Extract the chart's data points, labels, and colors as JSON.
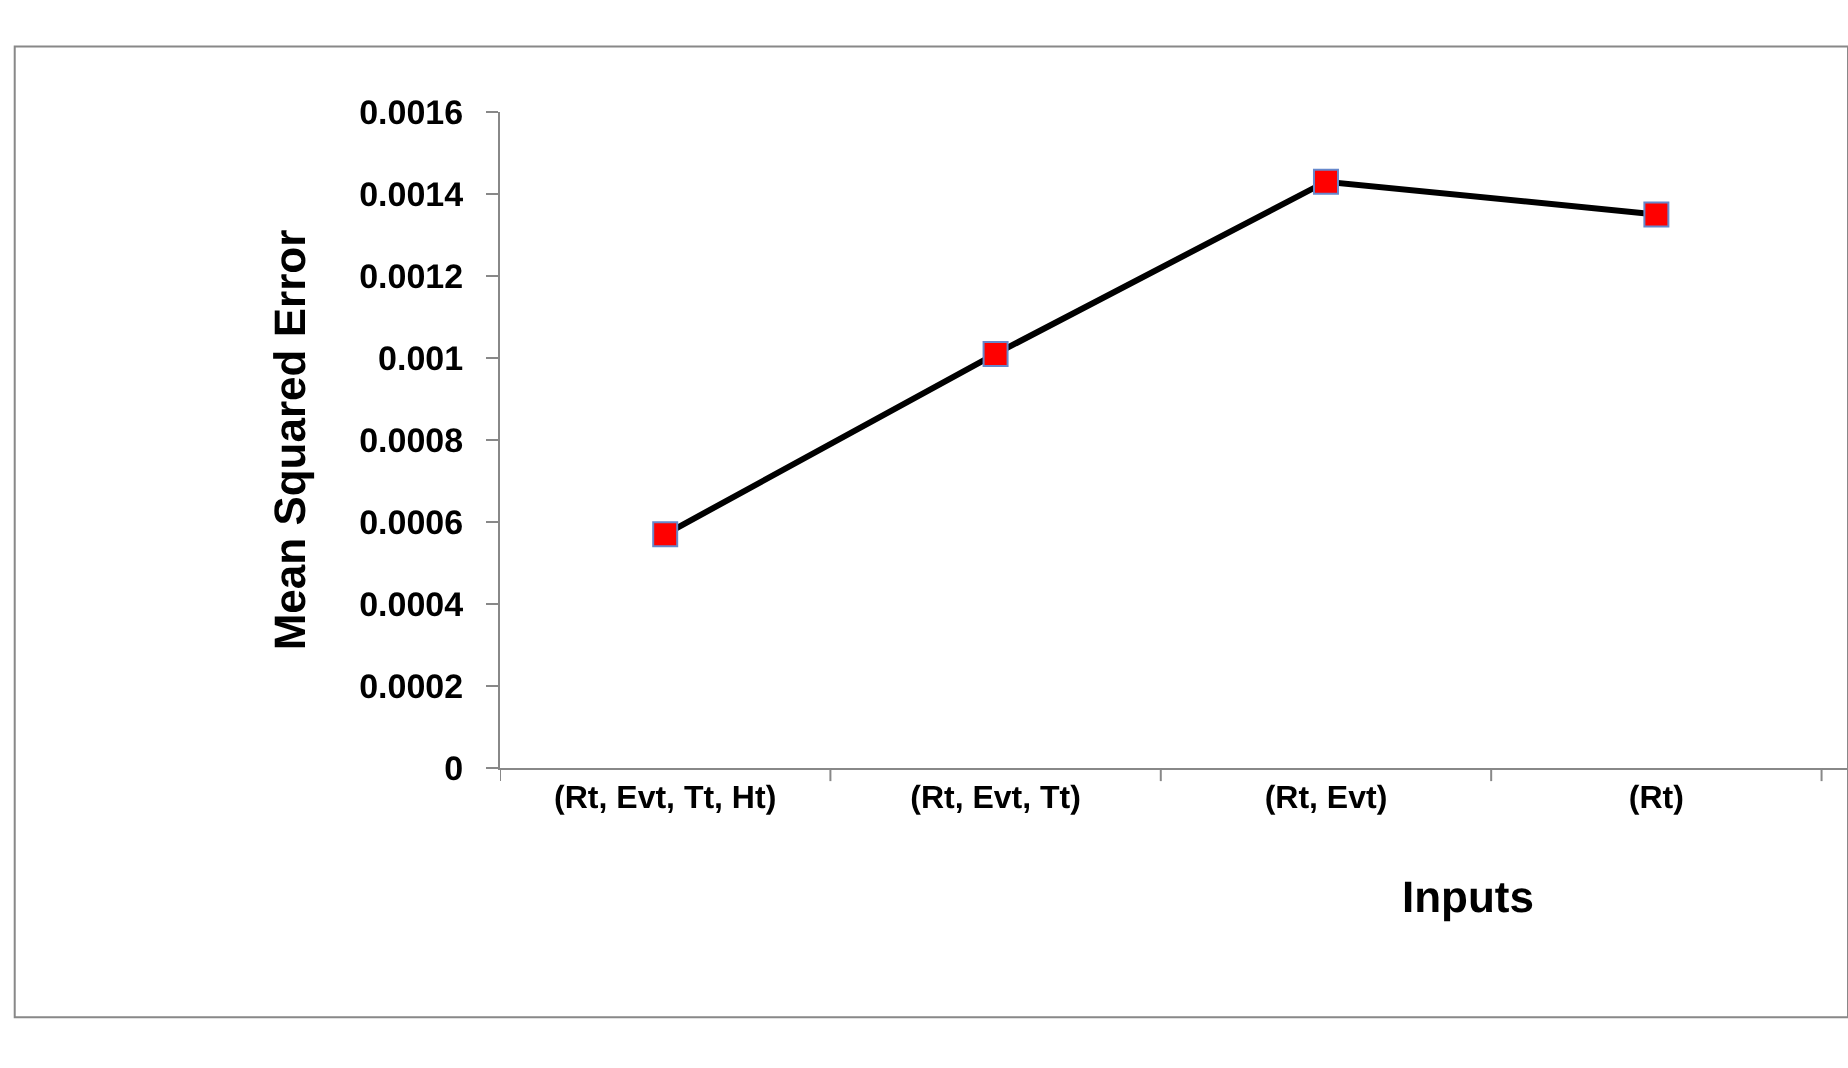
{
  "chart_data": {
    "type": "line",
    "xlabel": "Inputs",
    "ylabel": "Mean Squared Error",
    "categories": [
      "(Rt, Evt, Tt, Ht)",
      "(Rt, Evt, Tt)",
      "(Rt, Evt)",
      "(Rt)"
    ],
    "series": [
      {
        "color": "#000000",
        "colors": [
          "#ff0000",
          "#ff0000",
          "#ff0000",
          "#ff0000"
        ],
        "values": [
          0.00057,
          0.00101,
          0.00143,
          0.00135
        ]
      }
    ],
    "ylim": [
      0,
      0.0016
    ],
    "yticks": [
      0,
      0.0002,
      0.0004,
      0.0006,
      0.0008,
      0.001,
      0.0012,
      0.0014,
      0.0016
    ],
    "legend": false,
    "marker": "square",
    "line_style": "solid"
  }
}
